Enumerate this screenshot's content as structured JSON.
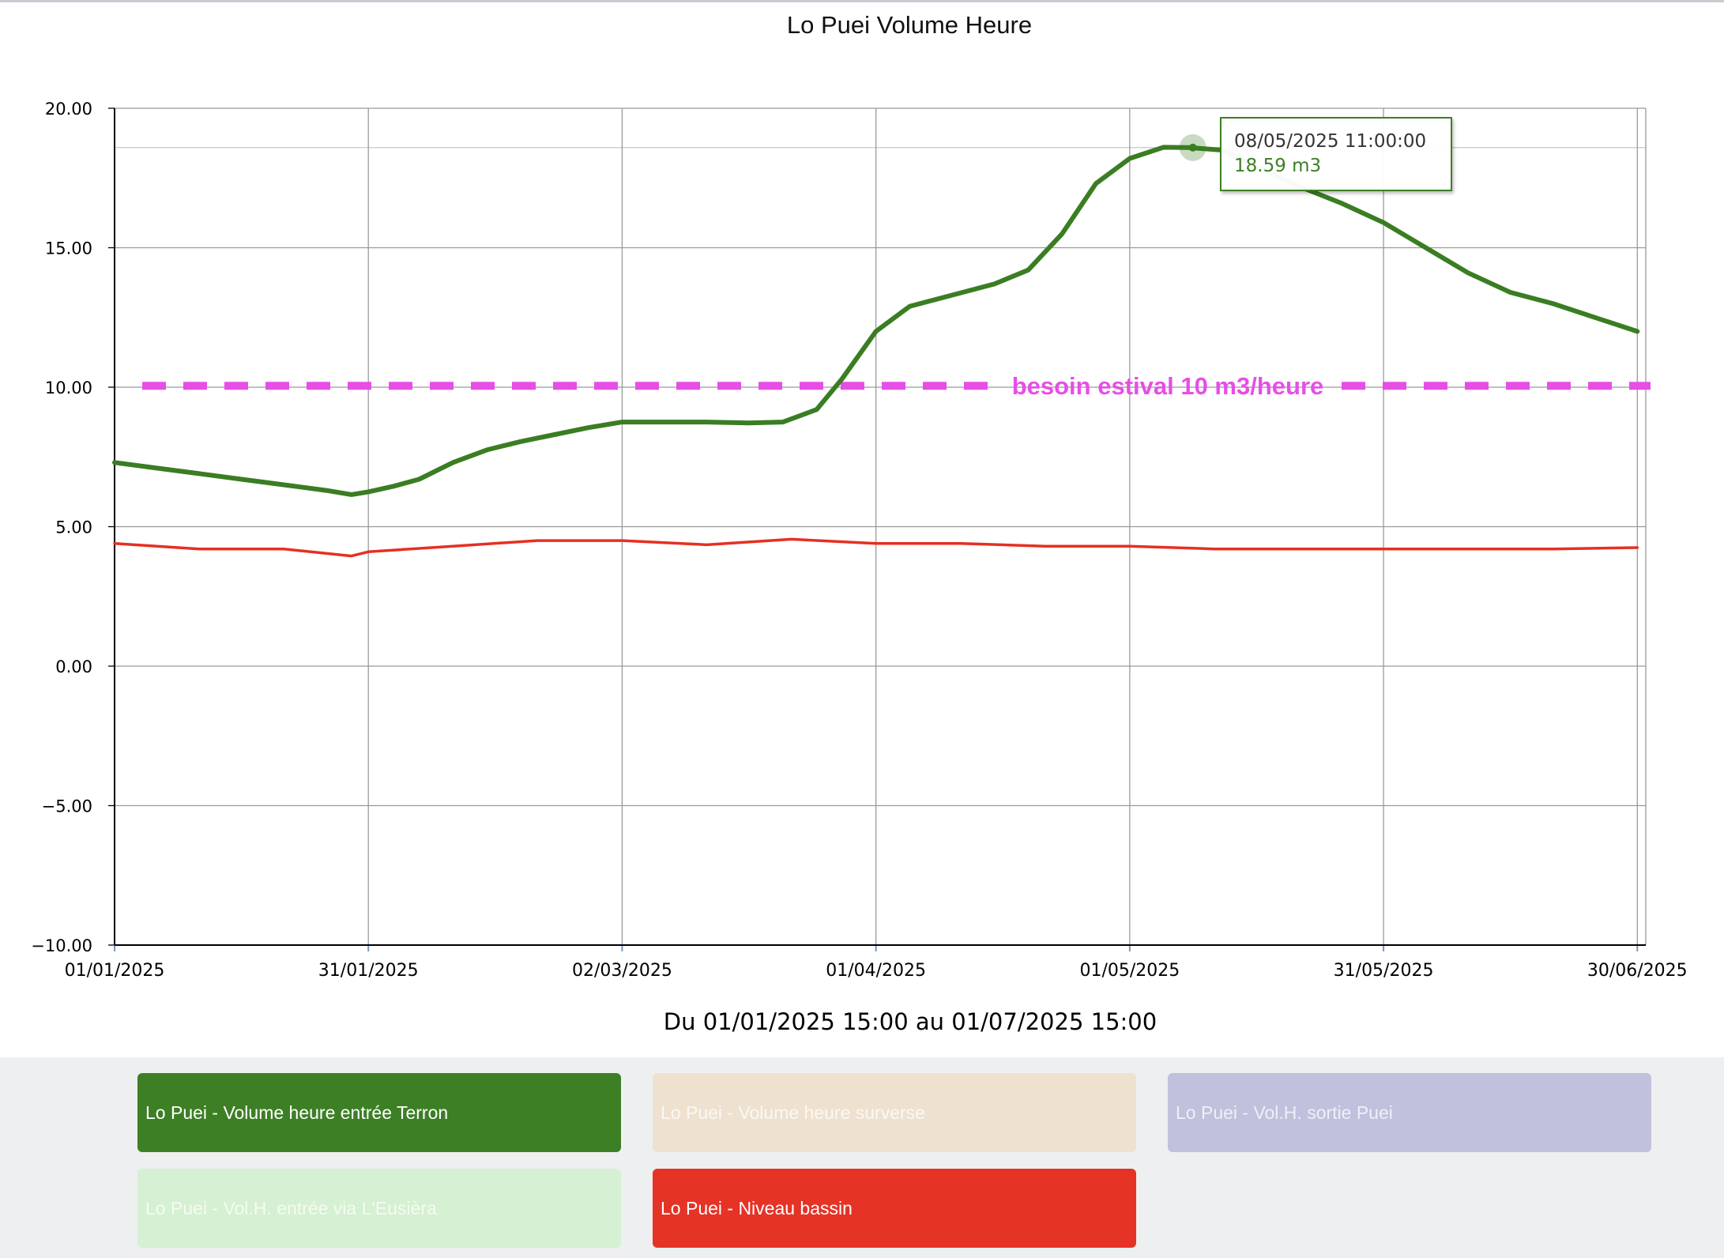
{
  "chart_data": {
    "type": "line",
    "title": "Lo Puei Volume Heure",
    "subtitle": "Du 01/01/2025 15:00 au 01/07/2025 15:00",
    "xlabel": "",
    "ylabel": "",
    "x_range": [
      "01/01/2025",
      "01/07/2025"
    ],
    "ylim": [
      -10,
      20
    ],
    "y_ticks": [
      "20.00",
      "15.00",
      "10.00",
      "5.00",
      "0.00",
      "−5.00",
      "−10.00"
    ],
    "x_ticks": [
      "01/01/2025",
      "31/01/2025",
      "02/03/2025",
      "01/04/2025",
      "01/05/2025",
      "31/05/2025",
      "30/06/2025"
    ],
    "grid": true,
    "threshold": {
      "value": 10.05,
      "label": "besoin estival 10 m3/heure",
      "color": "#e64ee6"
    },
    "series": [
      {
        "name": "Lo Puei - Volume heure entrée Terron",
        "color": "#3a7d22",
        "points": [
          [
            "01/01/2025",
            7.3
          ],
          [
            "06/01/2025",
            7.1
          ],
          [
            "11/01/2025",
            6.9
          ],
          [
            "16/01/2025",
            6.7
          ],
          [
            "21/01/2025",
            6.5
          ],
          [
            "26/01/2025",
            6.3
          ],
          [
            "29/01/2025",
            6.15
          ],
          [
            "31/01/2025",
            6.25
          ],
          [
            "03/02/2025",
            6.45
          ],
          [
            "06/02/2025",
            6.7
          ],
          [
            "10/02/2025",
            7.3
          ],
          [
            "14/02/2025",
            7.75
          ],
          [
            "18/02/2025",
            8.05
          ],
          [
            "22/02/2025",
            8.3
          ],
          [
            "26/02/2025",
            8.55
          ],
          [
            "02/03/2025",
            8.75
          ],
          [
            "07/03/2025",
            8.75
          ],
          [
            "12/03/2025",
            8.75
          ],
          [
            "17/03/2025",
            8.72
          ],
          [
            "21/03/2025",
            8.75
          ],
          [
            "25/03/2025",
            9.2
          ],
          [
            "28/03/2025",
            10.3
          ],
          [
            "01/04/2025",
            12.0
          ],
          [
            "05/04/2025",
            12.9
          ],
          [
            "10/04/2025",
            13.3
          ],
          [
            "15/04/2025",
            13.7
          ],
          [
            "19/04/2025",
            14.2
          ],
          [
            "23/04/2025",
            15.5
          ],
          [
            "27/04/2025",
            17.3
          ],
          [
            "01/05/2025",
            18.2
          ],
          [
            "05/05/2025",
            18.6
          ],
          [
            "08/05/2025",
            18.59
          ],
          [
            "12/05/2025",
            18.5
          ],
          [
            "16/05/2025",
            17.9
          ],
          [
            "21/05/2025",
            17.2
          ],
          [
            "26/05/2025",
            16.6
          ],
          [
            "31/05/2025",
            15.9
          ],
          [
            "05/06/2025",
            15.0
          ],
          [
            "10/06/2025",
            14.1
          ],
          [
            "15/06/2025",
            13.4
          ],
          [
            "20/06/2025",
            13.0
          ],
          [
            "25/06/2025",
            12.5
          ],
          [
            "30/06/2025",
            12.0
          ]
        ]
      },
      {
        "name": "Lo Puei - Volume heure surverse",
        "color": "#ede1d2",
        "points": []
      },
      {
        "name": "Lo Puei - Vol.H. sortie Puei",
        "color": "#bfc1dc",
        "points": []
      },
      {
        "name": "Lo Puei - Vol.H. entrée via L'Eusièra",
        "color": "#d4efd2",
        "points": []
      },
      {
        "name": "Lo Puei - Niveau bassin",
        "color": "#e53022",
        "points": [
          [
            "01/01/2025",
            4.4
          ],
          [
            "11/01/2025",
            4.2
          ],
          [
            "21/01/2025",
            4.2
          ],
          [
            "29/01/2025",
            3.95
          ],
          [
            "31/01/2025",
            4.1
          ],
          [
            "10/02/2025",
            4.3
          ],
          [
            "20/02/2025",
            4.5
          ],
          [
            "02/03/2025",
            4.5
          ],
          [
            "12/03/2025",
            4.35
          ],
          [
            "22/03/2025",
            4.55
          ],
          [
            "01/04/2025",
            4.4
          ],
          [
            "11/04/2025",
            4.4
          ],
          [
            "21/04/2025",
            4.3
          ],
          [
            "01/05/2025",
            4.3
          ],
          [
            "11/05/2025",
            4.2
          ],
          [
            "21/05/2025",
            4.2
          ],
          [
            "31/05/2025",
            4.2
          ],
          [
            "10/06/2025",
            4.2
          ],
          [
            "20/06/2025",
            4.2
          ],
          [
            "30/06/2025",
            4.25
          ]
        ]
      }
    ],
    "tooltip": {
      "date": "08/05/2025 11:00:00",
      "value": "18.59 m3",
      "x": "08/05/2025 11:00",
      "y": 18.59
    }
  },
  "legend": [
    {
      "label": "Lo Puei - Volume heure entrée Terron",
      "color": "#3d7f25",
      "active": true
    },
    {
      "label": "Lo Puei - Volume heure surverse",
      "color": "#eee1d0",
      "active": false
    },
    {
      "label": "Lo Puei - Vol.H. sortie Puei",
      "color": "#c0c1dd",
      "active": false
    },
    {
      "label": "Lo Puei - Vol.H. entrée via L'Eusièra",
      "color": "#d5f0d2",
      "active": false
    },
    {
      "label": "Lo Puei - Niveau bassin",
      "color": "#e53326",
      "active": true
    }
  ]
}
